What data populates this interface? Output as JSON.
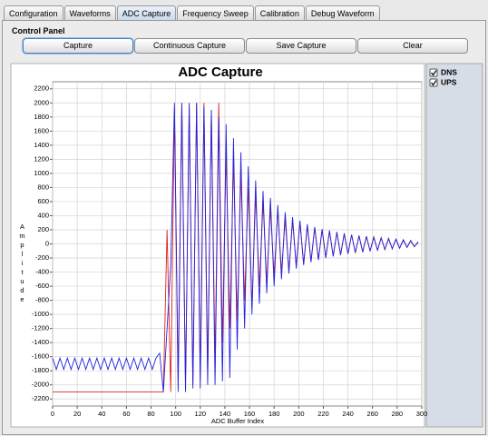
{
  "tabs": [
    "Configuration",
    "Waveforms",
    "ADC Capture",
    "Frequency Sweep",
    "Calibration",
    "Debug Waveform"
  ],
  "selected_tab": 2,
  "control_panel": {
    "title": "Control Panel",
    "buttons": [
      "Capture",
      "Continuous Capture",
      "Save Capture",
      "Clear"
    ]
  },
  "chart_data": {
    "type": "line",
    "title": "ADC Capture",
    "x_label": "ADC Buffer Index",
    "y_label": "Amplitude",
    "xlim": [
      0,
      300
    ],
    "xticks": [
      0,
      20,
      40,
      60,
      80,
      100,
      120,
      140,
      160,
      180,
      200,
      220,
      240,
      260,
      280,
      300
    ],
    "ylim": [
      -2300,
      2300
    ],
    "yticks": [
      -2200,
      -2000,
      -1800,
      -1600,
      -1400,
      -1200,
      -1000,
      -800,
      -600,
      -400,
      -200,
      0,
      200,
      400,
      600,
      800,
      1000,
      1200,
      1400,
      1600,
      1800,
      2000,
      2200
    ],
    "grid": true,
    "legend": "right",
    "x": [
      0,
      3,
      6,
      9,
      12,
      15,
      18,
      21,
      24,
      27,
      30,
      33,
      36,
      39,
      42,
      45,
      48,
      51,
      54,
      57,
      60,
      63,
      66,
      69,
      72,
      75,
      78,
      81,
      84,
      87,
      90,
      93,
      96,
      99,
      102,
      105,
      108,
      111,
      114,
      117,
      120,
      123,
      126,
      129,
      132,
      135,
      138,
      141,
      144,
      147,
      150,
      153,
      156,
      159,
      162,
      165,
      168,
      171,
      174,
      177,
      180,
      183,
      186,
      189,
      192,
      195,
      198,
      201,
      204,
      207,
      210,
      213,
      216,
      219,
      222,
      225,
      228,
      231,
      234,
      237,
      240,
      243,
      246,
      249,
      252,
      255,
      258,
      261,
      264,
      267,
      270,
      273,
      276,
      279,
      282,
      285,
      288,
      291,
      294,
      297
    ],
    "series": [
      {
        "name": "DNS",
        "color": "#2323e0",
        "values": [
          -1620,
          -1780,
          -1620,
          -1780,
          -1620,
          -1780,
          -1620,
          -1780,
          -1620,
          -1780,
          -1620,
          -1780,
          -1620,
          -1780,
          -1620,
          -1780,
          -1620,
          -1780,
          -1620,
          -1780,
          -1620,
          -1780,
          -1620,
          -1780,
          -1620,
          -1780,
          -1620,
          -1780,
          -1620,
          -1550,
          -2100,
          -1200,
          -300,
          2000,
          -2100,
          2000,
          -2100,
          2000,
          -2050,
          2000,
          -2050,
          1950,
          -2000,
          1900,
          -2000,
          1800,
          -1950,
          1700,
          -1900,
          1500,
          -1500,
          1300,
          -1200,
          1100,
          -1000,
          900,
          -850,
          750,
          -700,
          650,
          -600,
          550,
          -500,
          450,
          -420,
          380,
          -350,
          330,
          -300,
          280,
          -260,
          240,
          -230,
          210,
          -200,
          190,
          -180,
          170,
          -160,
          150,
          -140,
          130,
          -130,
          120,
          -120,
          110,
          -100,
          100,
          -90,
          90,
          -80,
          80,
          -70,
          70,
          -60,
          60,
          -50,
          50,
          -40,
          30
        ]
      },
      {
        "name": "UPS",
        "color": "#e02020",
        "values": [
          -2100,
          -2100,
          -2100,
          -2100,
          -2100,
          -2100,
          -2100,
          -2100,
          -2100,
          -2100,
          -2100,
          -2100,
          -2100,
          -2100,
          -2100,
          -2100,
          -2100,
          -2100,
          -2100,
          -2100,
          -2100,
          -2100,
          -2100,
          -2100,
          -2100,
          -2100,
          -2100,
          -2100,
          -2100,
          -2100,
          -2100,
          200,
          -2100,
          1900,
          -1900,
          2000,
          -2000,
          1950,
          -2000,
          2000,
          -1900,
          2000,
          -1800,
          1900,
          -1700,
          2000,
          -1400,
          1300,
          -1200,
          1200,
          -1100,
          1000,
          -800,
          800,
          -900,
          700,
          -600,
          600,
          -550,
          500,
          -450,
          480,
          -400,
          350,
          -380,
          320,
          -300,
          300,
          -280,
          250,
          -240,
          230,
          -220,
          200,
          -190,
          180,
          -170,
          160,
          -150,
          140,
          -140,
          130,
          -120,
          110,
          -110,
          100,
          -100,
          90,
          -90,
          80,
          -80,
          70,
          -70,
          60,
          -60,
          50,
          -50,
          40,
          -40,
          20
        ]
      }
    ]
  }
}
